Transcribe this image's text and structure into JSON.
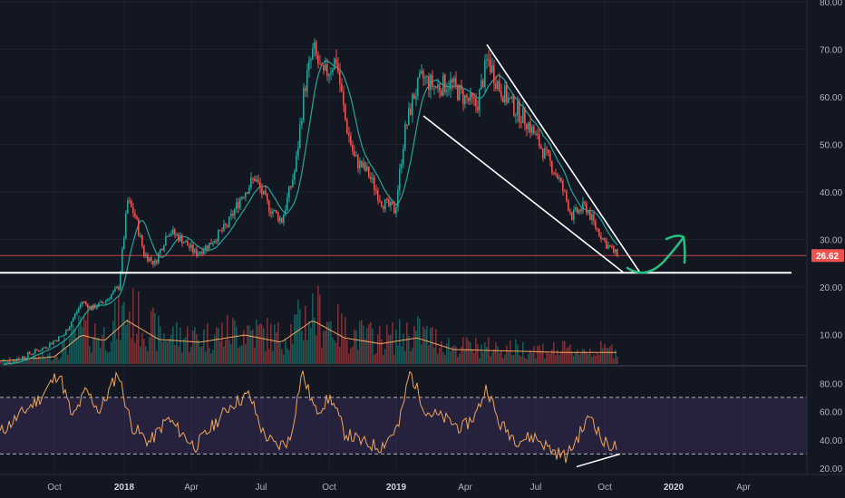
{
  "chart_data": [
    {
      "type": "candlestick",
      "x_ticks": [
        {
          "label": "Oct",
          "bold": false
        },
        {
          "label": "2018",
          "bold": true
        },
        {
          "label": "Apr",
          "bold": false
        },
        {
          "label": "Jul",
          "bold": false
        },
        {
          "label": "Oct",
          "bold": false
        },
        {
          "label": "2019",
          "bold": true
        },
        {
          "label": "Apr",
          "bold": false
        },
        {
          "label": "Jul",
          "bold": false
        },
        {
          "label": "Oct",
          "bold": false
        },
        {
          "label": "2020",
          "bold": true
        },
        {
          "label": "Apr",
          "bold": false
        }
      ],
      "y_ticks": [
        "80.00",
        "70.00",
        "60.00",
        "50.00",
        "40.00",
        "30.00",
        "20.00",
        "10.00"
      ],
      "ylim": [
        0,
        80
      ],
      "last_price": "26.62",
      "last_price_value": 26.62,
      "support_level": 23,
      "colors": {
        "up": "#26a69a",
        "down": "#ef5350",
        "ma": "#26a69a",
        "volume_ma": "#f0a55a",
        "annotation_line": "#ffffff",
        "arrow": "#26c281",
        "price_line": "#ef5350"
      },
      "series_anchors": [
        {
          "t": 0,
          "v": 3.5
        },
        {
          "t": 20,
          "v": 5
        },
        {
          "t": 45,
          "v": 7
        },
        {
          "t": 70,
          "v": 10
        },
        {
          "t": 90,
          "v": 17
        },
        {
          "t": 100,
          "v": 15.5
        },
        {
          "t": 115,
          "v": 17
        },
        {
          "t": 130,
          "v": 20
        },
        {
          "t": 140,
          "v": 38
        },
        {
          "t": 148,
          "v": 35
        },
        {
          "t": 158,
          "v": 27
        },
        {
          "t": 170,
          "v": 25
        },
        {
          "t": 185,
          "v": 32
        },
        {
          "t": 200,
          "v": 30
        },
        {
          "t": 215,
          "v": 27
        },
        {
          "t": 230,
          "v": 29
        },
        {
          "t": 250,
          "v": 33
        },
        {
          "t": 265,
          "v": 39
        },
        {
          "t": 280,
          "v": 43
        },
        {
          "t": 295,
          "v": 37
        },
        {
          "t": 310,
          "v": 34
        },
        {
          "t": 325,
          "v": 45
        },
        {
          "t": 335,
          "v": 62
        },
        {
          "t": 345,
          "v": 70
        },
        {
          "t": 355,
          "v": 64
        },
        {
          "t": 370,
          "v": 68
        },
        {
          "t": 380,
          "v": 55
        },
        {
          "t": 390,
          "v": 47
        },
        {
          "t": 405,
          "v": 44
        },
        {
          "t": 420,
          "v": 38
        },
        {
          "t": 435,
          "v": 36
        },
        {
          "t": 445,
          "v": 52
        },
        {
          "t": 455,
          "v": 60
        },
        {
          "t": 465,
          "v": 64
        },
        {
          "t": 480,
          "v": 62
        },
        {
          "t": 495,
          "v": 63
        },
        {
          "t": 510,
          "v": 60
        },
        {
          "t": 525,
          "v": 58
        },
        {
          "t": 537,
          "v": 68
        },
        {
          "t": 550,
          "v": 62
        },
        {
          "t": 565,
          "v": 58
        },
        {
          "t": 580,
          "v": 55
        },
        {
          "t": 600,
          "v": 48
        },
        {
          "t": 615,
          "v": 43
        },
        {
          "t": 630,
          "v": 35
        },
        {
          "t": 645,
          "v": 37
        },
        {
          "t": 655,
          "v": 33
        },
        {
          "t": 668,
          "v": 29
        },
        {
          "t": 680,
          "v": 26.62
        }
      ],
      "volume_ma_anchors": [
        {
          "t": 0,
          "v": 0.2
        },
        {
          "t": 60,
          "v": 0.5
        },
        {
          "t": 90,
          "v": 2.0
        },
        {
          "t": 115,
          "v": 1.6
        },
        {
          "t": 140,
          "v": 3.0
        },
        {
          "t": 175,
          "v": 1.7
        },
        {
          "t": 220,
          "v": 1.5
        },
        {
          "t": 270,
          "v": 2.0
        },
        {
          "t": 310,
          "v": 1.5
        },
        {
          "t": 345,
          "v": 3.0
        },
        {
          "t": 380,
          "v": 1.8
        },
        {
          "t": 420,
          "v": 1.4
        },
        {
          "t": 460,
          "v": 1.8
        },
        {
          "t": 500,
          "v": 1.0
        },
        {
          "t": 560,
          "v": 0.9
        },
        {
          "t": 620,
          "v": 0.8
        },
        {
          "t": 680,
          "v": 0.8
        }
      ],
      "annotations": {
        "wedge_upper": [
          {
            "t": 537,
            "v": 71
          },
          {
            "t": 706,
            "v": 23
          }
        ],
        "wedge_lower": [
          {
            "t": 467,
            "v": 56
          },
          {
            "t": 688,
            "v": 23
          }
        ],
        "support_span": [
          0,
          873
        ],
        "arrow_label": "projected rebound"
      }
    },
    {
      "type": "line",
      "title": "",
      "y_ticks": [
        "80.00",
        "60.00",
        "40.00",
        "20.00"
      ],
      "ylim": [
        16,
        92
      ],
      "bands": {
        "upper": 70,
        "lower": 30
      },
      "colors": {
        "line": "#f0a55a",
        "band_fill": "#7e57c2",
        "band_line": "#b2b5be",
        "divergence": "#ffffff"
      },
      "series_anchors": [
        {
          "t": 0,
          "v": 45
        },
        {
          "t": 30,
          "v": 62
        },
        {
          "t": 45,
          "v": 70
        },
        {
          "t": 65,
          "v": 88
        },
        {
          "t": 80,
          "v": 55
        },
        {
          "t": 95,
          "v": 75
        },
        {
          "t": 110,
          "v": 60
        },
        {
          "t": 130,
          "v": 88
        },
        {
          "t": 145,
          "v": 50
        },
        {
          "t": 165,
          "v": 38
        },
        {
          "t": 185,
          "v": 55
        },
        {
          "t": 200,
          "v": 45
        },
        {
          "t": 215,
          "v": 35
        },
        {
          "t": 235,
          "v": 50
        },
        {
          "t": 255,
          "v": 65
        },
        {
          "t": 275,
          "v": 72
        },
        {
          "t": 290,
          "v": 45
        },
        {
          "t": 305,
          "v": 35
        },
        {
          "t": 320,
          "v": 40
        },
        {
          "t": 333,
          "v": 88
        },
        {
          "t": 348,
          "v": 60
        },
        {
          "t": 365,
          "v": 70
        },
        {
          "t": 380,
          "v": 45
        },
        {
          "t": 400,
          "v": 38
        },
        {
          "t": 420,
          "v": 35
        },
        {
          "t": 440,
          "v": 50
        },
        {
          "t": 452,
          "v": 88
        },
        {
          "t": 470,
          "v": 60
        },
        {
          "t": 490,
          "v": 55
        },
        {
          "t": 510,
          "v": 48
        },
        {
          "t": 525,
          "v": 58
        },
        {
          "t": 537,
          "v": 78
        },
        {
          "t": 550,
          "v": 52
        },
        {
          "t": 570,
          "v": 40
        },
        {
          "t": 590,
          "v": 42
        },
        {
          "t": 610,
          "v": 32
        },
        {
          "t": 625,
          "v": 28
        },
        {
          "t": 640,
          "v": 45
        },
        {
          "t": 652,
          "v": 58
        },
        {
          "t": 665,
          "v": 38
        },
        {
          "t": 680,
          "v": 35
        }
      ],
      "divergence_line": [
        {
          "t": 636,
          "v": 21
        },
        {
          "t": 684,
          "v": 30
        }
      ]
    }
  ]
}
